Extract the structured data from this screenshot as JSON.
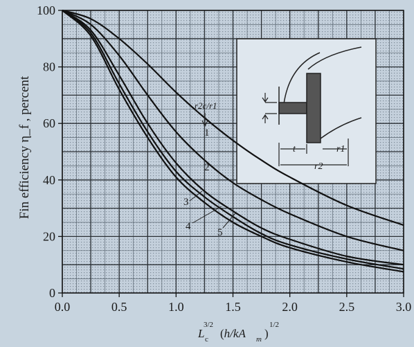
{
  "chart_data": {
    "type": "line",
    "title": "",
    "ylabel": "Fin efficiency η_f , percent",
    "xlabel": "L_c^{3/2} (h/kA_m)^{1/2}",
    "xlim": [
      0,
      3
    ],
    "ylim": [
      0,
      100
    ],
    "grid": true,
    "x_ticks": [
      "0.0",
      "0.5",
      "1.0",
      "1.5",
      "2.0",
      "2.5",
      "3.0"
    ],
    "y_ticks": [
      "0",
      "20",
      "40",
      "60",
      "80",
      "100"
    ],
    "legend_title": "r2c/r1",
    "series": [
      {
        "name": "1",
        "points": [
          [
            0,
            100
          ],
          [
            0.25,
            97
          ],
          [
            0.5,
            90
          ],
          [
            0.75,
            81
          ],
          [
            1.0,
            71
          ],
          [
            1.25,
            62
          ],
          [
            1.5,
            54
          ],
          [
            1.75,
            47
          ],
          [
            2.0,
            41
          ],
          [
            2.5,
            31
          ],
          [
            3.0,
            24
          ]
        ]
      },
      {
        "name": "2",
        "points": [
          [
            0,
            100
          ],
          [
            0.25,
            95
          ],
          [
            0.5,
            84
          ],
          [
            0.75,
            70
          ],
          [
            1.0,
            57
          ],
          [
            1.25,
            47
          ],
          [
            1.5,
            39
          ],
          [
            1.75,
            33
          ],
          [
            2.0,
            28
          ],
          [
            2.5,
            20
          ],
          [
            3.0,
            15
          ]
        ]
      },
      {
        "name": "3",
        "points": [
          [
            0,
            100
          ],
          [
            0.25,
            93
          ],
          [
            0.5,
            77
          ],
          [
            0.75,
            60
          ],
          [
            1.0,
            46
          ],
          [
            1.25,
            36
          ],
          [
            1.5,
            29
          ],
          [
            1.75,
            23
          ],
          [
            2.0,
            19
          ],
          [
            2.5,
            13
          ],
          [
            3.0,
            10
          ]
        ]
      },
      {
        "name": "4",
        "points": [
          [
            0,
            100
          ],
          [
            0.25,
            92
          ],
          [
            0.5,
            74
          ],
          [
            0.75,
            57
          ],
          [
            1.0,
            43
          ],
          [
            1.25,
            34
          ],
          [
            1.5,
            27
          ],
          [
            1.75,
            21
          ],
          [
            2.0,
            17
          ],
          [
            2.5,
            12
          ],
          [
            3.0,
            8.5
          ]
        ]
      },
      {
        "name": "5",
        "points": [
          [
            0,
            100
          ],
          [
            0.25,
            91
          ],
          [
            0.5,
            72
          ],
          [
            0.75,
            55
          ],
          [
            1.0,
            41
          ],
          [
            1.25,
            32
          ],
          [
            1.5,
            25
          ],
          [
            1.75,
            20
          ],
          [
            2.0,
            16
          ],
          [
            2.5,
            11
          ],
          [
            3.0,
            7.5
          ]
        ]
      }
    ]
  },
  "inset": {
    "legend_label": "r2c/r1",
    "dim_t": "t",
    "dim_r1": "r1",
    "dim_r2": "r2"
  }
}
